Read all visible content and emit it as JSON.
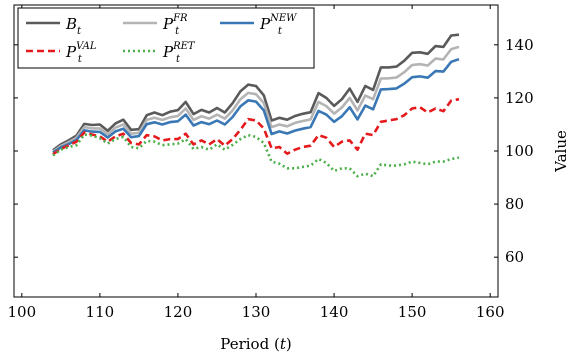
{
  "chart_data": {
    "type": "line",
    "xlabel": "Period (t)",
    "ylabel": "Value",
    "xlim": [
      99,
      161
    ],
    "ylim": [
      45,
      155
    ],
    "x_ticks": [
      100,
      110,
      120,
      130,
      140,
      150,
      160
    ],
    "y_ticks": [
      60,
      80,
      100,
      120,
      140
    ],
    "y_axis_side": "right",
    "grid": false,
    "legend_position": "top-left",
    "x": [
      104,
      105,
      106,
      107,
      108,
      109,
      110,
      111,
      112,
      113,
      114,
      115,
      116,
      117,
      118,
      119,
      120,
      121,
      122,
      123,
      124,
      125,
      126,
      127,
      128,
      129,
      130,
      131,
      132,
      133,
      134,
      135,
      136,
      137,
      138,
      139,
      140,
      141,
      142,
      143,
      144,
      145,
      146,
      147,
      148,
      149,
      150,
      151,
      152,
      153,
      154,
      155,
      156
    ],
    "series": [
      {
        "name": "B_t",
        "label_main": "B",
        "label_sub": "t",
        "label_sup": "",
        "color": "#5a5a5a",
        "dash": "solid",
        "values": [
          100.3,
          102.5,
          104.0,
          105.8,
          110.2,
          109.8,
          110.0,
          107.6,
          110.4,
          111.8,
          108.0,
          108.2,
          113.5,
          114.5,
          113.5,
          114.8,
          115.4,
          118.5,
          113.9,
          115.5,
          114.5,
          116.2,
          114.5,
          118.0,
          122.5,
          125.0,
          124.5,
          121.0,
          111.5,
          112.5,
          111.8,
          113.2,
          114.0,
          114.6,
          121.8,
          120.0,
          117.0,
          119.5,
          123.5,
          118.5,
          124.5,
          123.0,
          131.5,
          131.5,
          131.8,
          134.0,
          137.0,
          137.2,
          136.6,
          139.5,
          139.2,
          143.5,
          143.8
        ]
      },
      {
        "name": "P_t^FR",
        "label_main": "P",
        "label_sub": "t",
        "label_sup": "FR",
        "color": "#b4b4b4",
        "dash": "solid",
        "values": [
          99.8,
          101.9,
          103.3,
          105.0,
          109.0,
          108.5,
          108.5,
          106.3,
          108.8,
          110.0,
          106.5,
          106.8,
          111.7,
          112.5,
          111.7,
          112.7,
          113.2,
          116.0,
          111.7,
          113.1,
          112.2,
          113.7,
          112.2,
          115.3,
          119.5,
          121.9,
          121.4,
          118.1,
          109.0,
          110.0,
          109.3,
          110.6,
          111.3,
          111.9,
          118.5,
          116.9,
          114.1,
          116.4,
          120.0,
          115.3,
          120.9,
          119.5,
          127.3,
          127.4,
          127.7,
          129.7,
          132.4,
          132.7,
          132.2,
          134.8,
          134.5,
          138.4,
          139.2
        ]
      },
      {
        "name": "P_t^NEW",
        "label_main": "P",
        "label_sub": "t",
        "label_sup": "NEW",
        "color": "#3a78b5",
        "dash": "solid",
        "values": [
          99.4,
          101.3,
          102.6,
          104.2,
          107.8,
          107.3,
          107.2,
          105.1,
          107.4,
          108.4,
          105.2,
          105.6,
          110.1,
          110.8,
          110.0,
          110.9,
          111.2,
          113.7,
          109.6,
          110.9,
          110.1,
          111.5,
          110.0,
          112.8,
          116.8,
          119.1,
          118.6,
          115.3,
          106.4,
          107.4,
          106.6,
          107.7,
          108.4,
          109.0,
          115.1,
          113.7,
          111.0,
          113.1,
          116.5,
          111.9,
          117.1,
          115.7,
          123.2,
          123.3,
          123.6,
          125.4,
          127.8,
          128.1,
          127.6,
          130.1,
          129.9,
          133.6,
          134.6
        ]
      },
      {
        "name": "P_t^VAL",
        "label_main": "P",
        "label_sub": "t",
        "label_sup": "VAL",
        "color": "#e41a1c",
        "dash": "dashed",
        "values": [
          98.8,
          100.8,
          102.1,
          103.5,
          107.0,
          106.2,
          105.5,
          103.5,
          105.5,
          106.5,
          103.0,
          102.5,
          106.0,
          105.5,
          104.0,
          104.5,
          104.5,
          106.5,
          102.5,
          104.0,
          102.5,
          104.5,
          102.0,
          104.5,
          108.0,
          112.0,
          111.5,
          108.5,
          101.0,
          101.5,
          99.0,
          100.5,
          101.5,
          102.0,
          106.0,
          105.0,
          101.5,
          103.5,
          104.0,
          100.5,
          106.5,
          106.0,
          111.0,
          111.5,
          112.0,
          113.5,
          116.0,
          116.5,
          114.5,
          116.0,
          115.0,
          119.0,
          119.5
        ]
      },
      {
        "name": "P_t^RET",
        "label_main": "P",
        "label_sub": "t",
        "label_sup": "RET",
        "color": "#4daf4a",
        "dash": "dotted",
        "values": [
          98.3,
          100.5,
          101.5,
          102.2,
          106.2,
          105.8,
          104.8,
          102.8,
          104.5,
          105.3,
          101.5,
          101.0,
          103.8,
          103.5,
          102.2,
          102.5,
          102.8,
          104.5,
          100.8,
          101.5,
          100.5,
          102.5,
          100.5,
          102.3,
          104.5,
          106.0,
          105.3,
          103.0,
          96.0,
          95.2,
          93.5,
          93.5,
          94.0,
          94.5,
          97.0,
          95.5,
          92.5,
          93.5,
          93.5,
          90.5,
          91.5,
          90.5,
          95.0,
          94.5,
          94.5,
          95.0,
          96.0,
          95.5,
          95.0,
          96.0,
          96.0,
          97.0,
          97.5
        ]
      }
    ]
  }
}
